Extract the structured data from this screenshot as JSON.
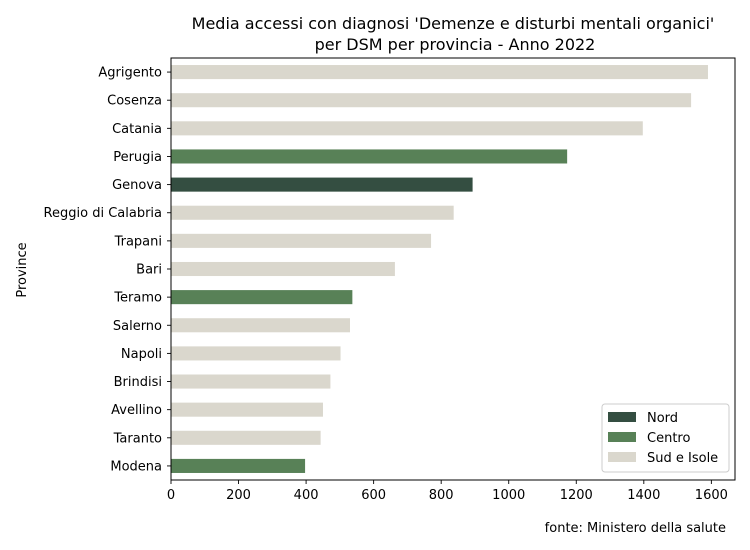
{
  "chart_data": {
    "type": "bar",
    "orientation": "horizontal",
    "title_lines": [
      "Media accessi con diagnosi 'Demenze e disturbi mentali organici'",
      "per DSM per provincia - Anno 2022"
    ],
    "ylabel": "Province",
    "xlabel": "",
    "xlim": [
      0,
      1670
    ],
    "xticks": [
      "0",
      "200",
      "400",
      "600",
      "800",
      "1000",
      "1200",
      "1400",
      "1600"
    ],
    "categories": [
      "Agrigento",
      "Cosenza",
      "Catania",
      "Perugia",
      "Genova",
      "Reggio di Calabria",
      "Trapani",
      "Bari",
      "Teramo",
      "Salerno",
      "Napoli",
      "Brindisi",
      "Avellino",
      "Taranto",
      "Modena"
    ],
    "values": [
      1590,
      1540,
      1397,
      1173,
      893,
      837,
      770,
      663,
      537,
      530,
      502,
      472,
      450,
      443,
      397
    ],
    "groups": [
      "Sud e Isole",
      "Sud e Isole",
      "Sud e Isole",
      "Centro",
      "Nord",
      "Sud e Isole",
      "Sud e Isole",
      "Sud e Isole",
      "Centro",
      "Sud e Isole",
      "Sud e Isole",
      "Sud e Isole",
      "Sud e Isole",
      "Sud e Isole",
      "Centro"
    ],
    "legend": {
      "position": "lower-right",
      "entries": [
        {
          "name": "Nord",
          "color": "#344e41"
        },
        {
          "name": "Centro",
          "color": "#588157"
        },
        {
          "name": "Sud e Isole",
          "color": "#dad7cd"
        }
      ]
    },
    "grid": false,
    "source": "fonte: Ministero della salute"
  }
}
